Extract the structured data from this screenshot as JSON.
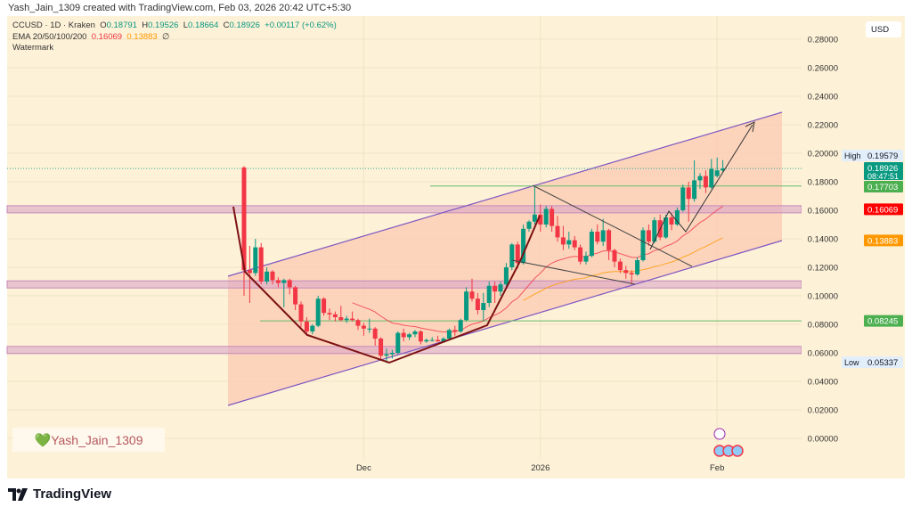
{
  "header": {
    "credit": "Yash_Jain_1309 created with TradingView.com, Feb 03, 2026 20:42 UTC+5:30"
  },
  "legend": {
    "symbol": "CCUSD · 1D · Kraken",
    "o_label": "O",
    "o": "0.18791",
    "h_label": "H",
    "h": "0.19526",
    "l_label": "L",
    "l": "0.18664",
    "c_label": "C",
    "c": "0.18926",
    "change": "+0.00117 (+0.62%)",
    "ema_label": "EMA 20/50/100/200",
    "ema20": "0.16069",
    "ema50": "0.13883",
    "ema_na": "∅",
    "watermark_label": "Watermark"
  },
  "currency": "USD",
  "watermark": {
    "text": "Yash_Jain_1309",
    "icon": "green-heart-icon"
  },
  "brand": {
    "name": "TradingView",
    "icon": "tradingview-logo-icon"
  },
  "colors": {
    "up": "#089981",
    "down": "#f23645",
    "ema20": "#f23645",
    "ema50": "#ff9800",
    "channel": "#7e57c2",
    "zone": "#ce93d8",
    "background": "#fdf1d7"
  },
  "chart_data": {
    "type": "candlestick",
    "symbol": "CCUSD",
    "interval": "1D",
    "start_date": "2025-11-10",
    "x_ticks": [
      {
        "label": "Dec",
        "date": "2025-12-01"
      },
      {
        "label": "2026",
        "date": "2026-01-01"
      },
      {
        "label": "Feb",
        "date": "2026-02-01"
      }
    ],
    "y_ticks": [
      "0.00000",
      "0.02000",
      "0.04000",
      "0.06000",
      "0.08000",
      "0.10000",
      "0.12000",
      "0.14000",
      "0.16000",
      "0.18000",
      "0.20000",
      "0.22000",
      "0.24000",
      "0.26000",
      "0.28000"
    ],
    "ylim": [
      -0.028,
      0.3
    ],
    "ohlc": [
      [
        0.19,
        0.191,
        0.1,
        0.118
      ],
      [
        0.118,
        0.135,
        0.095,
        0.116
      ],
      [
        0.116,
        0.14,
        0.114,
        0.134
      ],
      [
        0.134,
        0.137,
        0.108,
        0.11
      ],
      [
        0.11,
        0.12,
        0.108,
        0.117
      ],
      [
        0.117,
        0.118,
        0.108,
        0.111
      ],
      [
        0.111,
        0.113,
        0.106,
        0.109
      ],
      [
        0.109,
        0.112,
        0.092,
        0.111
      ],
      [
        0.111,
        0.112,
        0.101,
        0.106
      ],
      [
        0.106,
        0.107,
        0.09,
        0.094
      ],
      [
        0.094,
        0.096,
        0.078,
        0.082
      ],
      [
        0.082,
        0.085,
        0.072,
        0.075
      ],
      [
        0.075,
        0.08,
        0.073,
        0.079
      ],
      [
        0.079,
        0.1,
        0.078,
        0.098
      ],
      [
        0.098,
        0.099,
        0.086,
        0.088
      ],
      [
        0.088,
        0.091,
        0.083,
        0.087
      ],
      [
        0.087,
        0.089,
        0.082,
        0.085
      ],
      [
        0.085,
        0.093,
        0.082,
        0.083
      ],
      [
        0.083,
        0.086,
        0.081,
        0.084
      ],
      [
        0.084,
        0.089,
        0.082,
        0.083
      ],
      [
        0.083,
        0.084,
        0.076,
        0.079
      ],
      [
        0.079,
        0.081,
        0.072,
        0.077
      ],
      [
        0.077,
        0.084,
        0.074,
        0.077
      ],
      [
        0.077,
        0.078,
        0.065,
        0.07
      ],
      [
        0.07,
        0.071,
        0.055,
        0.058
      ],
      [
        0.058,
        0.063,
        0.053,
        0.059
      ],
      [
        0.059,
        0.062,
        0.056,
        0.06
      ],
      [
        0.06,
        0.075,
        0.059,
        0.074
      ],
      [
        0.074,
        0.077,
        0.068,
        0.071
      ],
      [
        0.071,
        0.074,
        0.069,
        0.073
      ],
      [
        0.073,
        0.076,
        0.071,
        0.075
      ],
      [
        0.075,
        0.076,
        0.066,
        0.068
      ],
      [
        0.068,
        0.07,
        0.067,
        0.069
      ],
      [
        0.069,
        0.071,
        0.068,
        0.069
      ],
      [
        0.069,
        0.072,
        0.068,
        0.068
      ],
      [
        0.068,
        0.071,
        0.067,
        0.07
      ],
      [
        0.07,
        0.077,
        0.069,
        0.076
      ],
      [
        0.076,
        0.079,
        0.072,
        0.075
      ],
      [
        0.075,
        0.084,
        0.074,
        0.083
      ],
      [
        0.083,
        0.106,
        0.082,
        0.103
      ],
      [
        0.103,
        0.112,
        0.096,
        0.098
      ],
      [
        0.098,
        0.102,
        0.087,
        0.09
      ],
      [
        0.09,
        0.102,
        0.082,
        0.095
      ],
      [
        0.095,
        0.11,
        0.092,
        0.107
      ],
      [
        0.107,
        0.11,
        0.095,
        0.103
      ],
      [
        0.103,
        0.11,
        0.1,
        0.108
      ],
      [
        0.108,
        0.123,
        0.106,
        0.12
      ],
      [
        0.12,
        0.137,
        0.118,
        0.136
      ],
      [
        0.136,
        0.138,
        0.119,
        0.123
      ],
      [
        0.123,
        0.15,
        0.122,
        0.147
      ],
      [
        0.147,
        0.153,
        0.145,
        0.152
      ],
      [
        0.152,
        0.177,
        0.15,
        0.157
      ],
      [
        0.157,
        0.164,
        0.145,
        0.15
      ],
      [
        0.15,
        0.163,
        0.148,
        0.161
      ],
      [
        0.161,
        0.163,
        0.145,
        0.149
      ],
      [
        0.149,
        0.156,
        0.138,
        0.141
      ],
      [
        0.141,
        0.149,
        0.132,
        0.136
      ],
      [
        0.136,
        0.145,
        0.133,
        0.139
      ],
      [
        0.139,
        0.142,
        0.132,
        0.134
      ],
      [
        0.134,
        0.136,
        0.122,
        0.124
      ],
      [
        0.124,
        0.131,
        0.122,
        0.128
      ],
      [
        0.128,
        0.147,
        0.127,
        0.145
      ],
      [
        0.145,
        0.15,
        0.136,
        0.138
      ],
      [
        0.138,
        0.154,
        0.135,
        0.146
      ],
      [
        0.146,
        0.147,
        0.125,
        0.132
      ],
      [
        0.132,
        0.133,
        0.12,
        0.124
      ],
      [
        0.124,
        0.126,
        0.116,
        0.118
      ],
      [
        0.118,
        0.121,
        0.112,
        0.116
      ],
      [
        0.116,
        0.118,
        0.108,
        0.115
      ],
      [
        0.115,
        0.127,
        0.114,
        0.125
      ],
      [
        0.125,
        0.148,
        0.124,
        0.146
      ],
      [
        0.146,
        0.15,
        0.135,
        0.138
      ],
      [
        0.138,
        0.155,
        0.137,
        0.153
      ],
      [
        0.153,
        0.157,
        0.139,
        0.141
      ],
      [
        0.141,
        0.157,
        0.14,
        0.155
      ],
      [
        0.155,
        0.158,
        0.146,
        0.15
      ],
      [
        0.15,
        0.162,
        0.149,
        0.16
      ],
      [
        0.16,
        0.178,
        0.159,
        0.176
      ],
      [
        0.176,
        0.18,
        0.152,
        0.168
      ],
      [
        0.168,
        0.195,
        0.166,
        0.181
      ],
      [
        0.181,
        0.186,
        0.175,
        0.184
      ],
      [
        0.184,
        0.188,
        0.172,
        0.176
      ],
      [
        0.176,
        0.196,
        0.175,
        0.189
      ],
      [
        0.184,
        0.197,
        0.183,
        0.188
      ],
      [
        0.18791,
        0.19526,
        0.18664,
        0.18926
      ]
    ],
    "price_labels": [
      {
        "label": "High",
        "value": "0.19579",
        "kind": "high"
      },
      {
        "value": "0.18926",
        "sub": "08:47:51",
        "kind": "last"
      },
      {
        "value": "0.17703",
        "kind": "level-green"
      },
      {
        "value": "0.16069",
        "kind": "ema20"
      },
      {
        "value": "0.13883",
        "kind": "ema50"
      },
      {
        "value": "0.08245",
        "kind": "level-green"
      },
      {
        "label": "Low",
        "value": "0.05337",
        "kind": "low"
      }
    ],
    "zones": [
      0.1607,
      0.108,
      0.062
    ],
    "grid": true
  }
}
